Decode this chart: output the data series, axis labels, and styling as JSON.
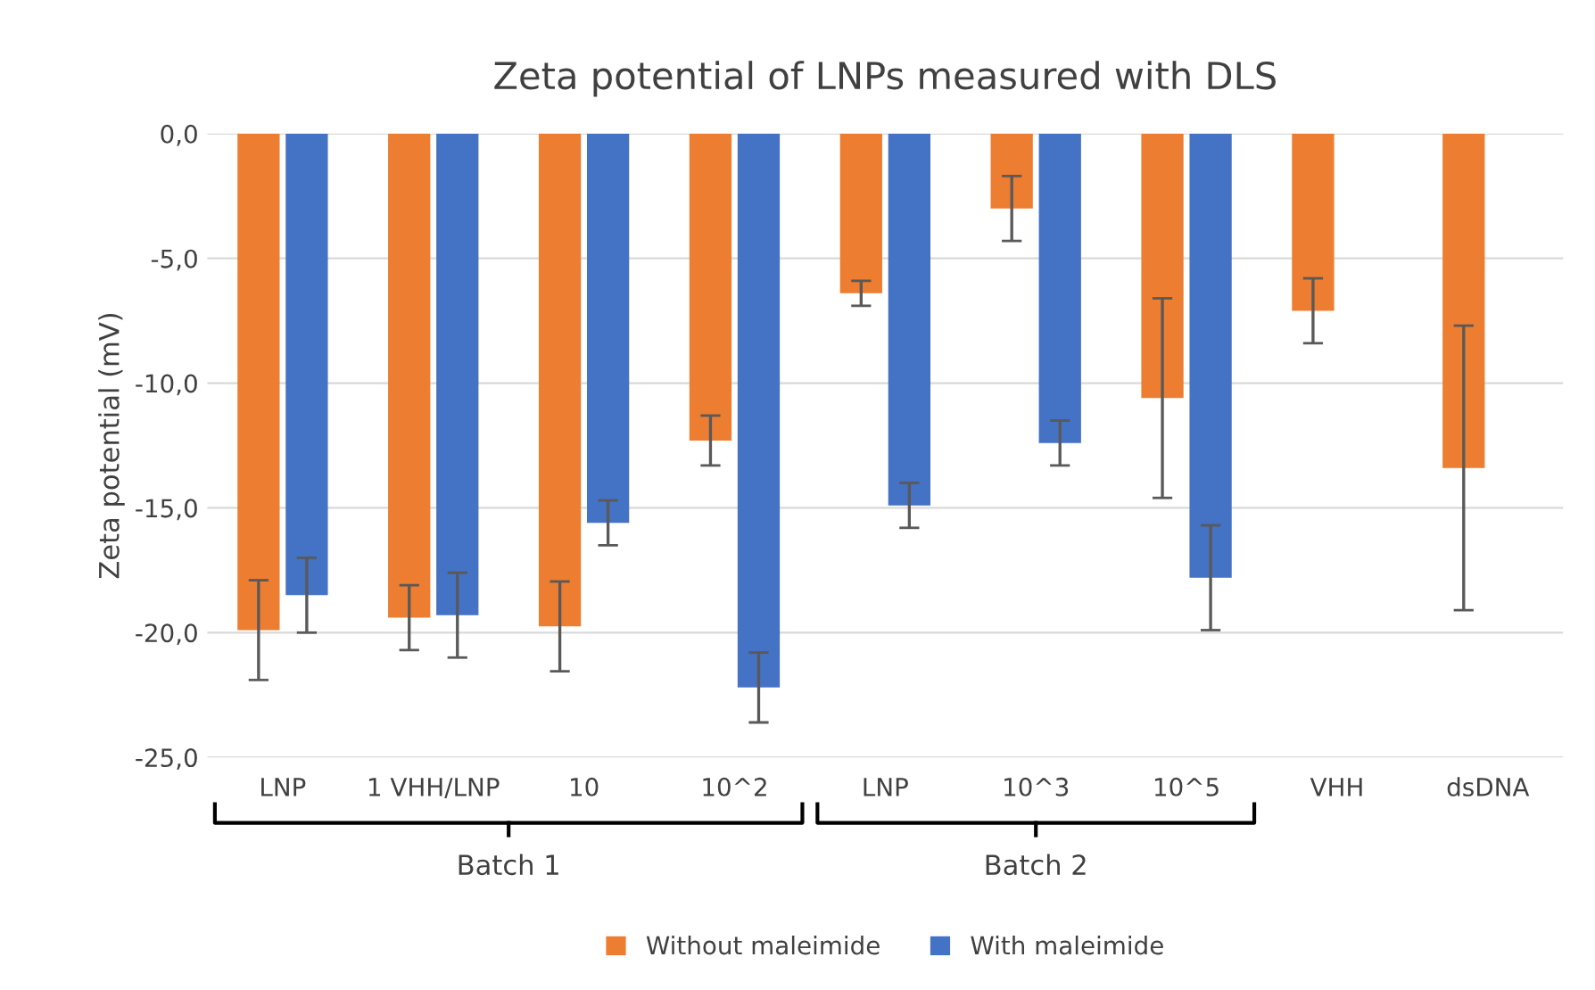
{
  "chart_data": {
    "type": "bar",
    "title": "Zeta potential of LNPs measured with DLS",
    "ylabel": "Zeta potential (mV)",
    "categories": [
      "LNP",
      "1 VHH/LNP",
      "10",
      "10^2",
      "LNP",
      "10^3",
      "10^5",
      "VHH",
      "dsDNA"
    ],
    "series": [
      {
        "name": "Without maleimide",
        "color": "#ed7d31",
        "values": [
          -19.9,
          -19.4,
          -19.75,
          -12.3,
          -6.4,
          -3.0,
          -10.6,
          -7.1,
          -13.4
        ],
        "errors": [
          2.0,
          1.3,
          1.8,
          1.0,
          0.5,
          1.3,
          4.0,
          1.3,
          5.7
        ]
      },
      {
        "name": "With maleimide",
        "color": "#4472c4",
        "values": [
          -18.5,
          -19.3,
          -15.6,
          -22.2,
          -14.9,
          -12.4,
          -17.8,
          null,
          null
        ],
        "errors": [
          1.5,
          1.7,
          0.9,
          1.4,
          0.9,
          0.9,
          2.1,
          null,
          null
        ]
      }
    ],
    "ylim": [
      -25,
      0
    ],
    "yticks": [
      {
        "value": 0,
        "label": "0,0"
      },
      {
        "value": -5,
        "label": "-5,0"
      },
      {
        "value": -10,
        "label": "-10,0"
      },
      {
        "value": -15,
        "label": "-15,0"
      },
      {
        "value": -20,
        "label": "-20,0"
      },
      {
        "value": -25,
        "label": "-25,0"
      }
    ],
    "annotations": [
      "Batch 1",
      "Batch 2"
    ],
    "grid": "y",
    "legend": "bottom"
  }
}
